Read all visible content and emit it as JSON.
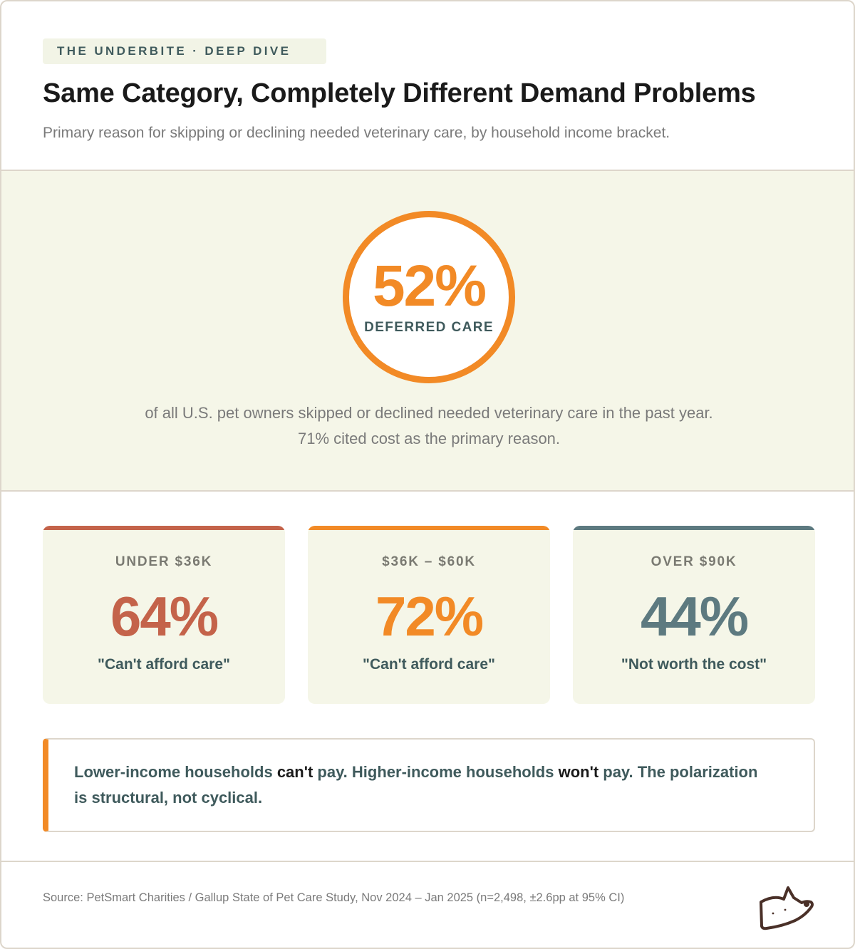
{
  "header": {
    "kicker": "THE UNDERBITE · DEEP DIVE",
    "title": "Same Category, Completely Different Demand Problems",
    "subtitle": "Primary reason for skipping or declining needed veterinary care, by household income bracket."
  },
  "hero": {
    "value": "52%",
    "label": "DEFERRED CARE",
    "description": "of all U.S. pet owners skipped or declined needed veterinary care in the past year. 71% cited cost as the primary reason."
  },
  "brackets": [
    {
      "bracket": "UNDER $36K",
      "value": "64%",
      "reason": "\"Can't afford care\"",
      "color": "#c4634a"
    },
    {
      "bracket": "$36K – $60K",
      "value": "72%",
      "reason": "\"Can't afford care\"",
      "color": "#f28a26"
    },
    {
      "bracket": "OVER $90K",
      "value": "44%",
      "reason": "\"Not worth the cost\"",
      "color": "#5d7a80"
    }
  ],
  "callout": {
    "part1": "Lower-income households ",
    "emph1": "can't",
    "part2": " pay. Higher-income households ",
    "emph2": "won't",
    "part3": " pay. The polarization is structural, not cyclical."
  },
  "footer": {
    "source": "Source: PetSmart Charities / Gallup State of Pet Care Study, Nov 2024 – Jan 2025 (n=2,498, ±2.6pp at 95% CI)",
    "logo_icon": "cat-logo-icon"
  },
  "colors": {
    "accent": "#f28a26",
    "low_income": "#c4634a",
    "high_income": "#5d7a80",
    "ink": "#3f5a5c",
    "band": "#f5f6e8"
  }
}
